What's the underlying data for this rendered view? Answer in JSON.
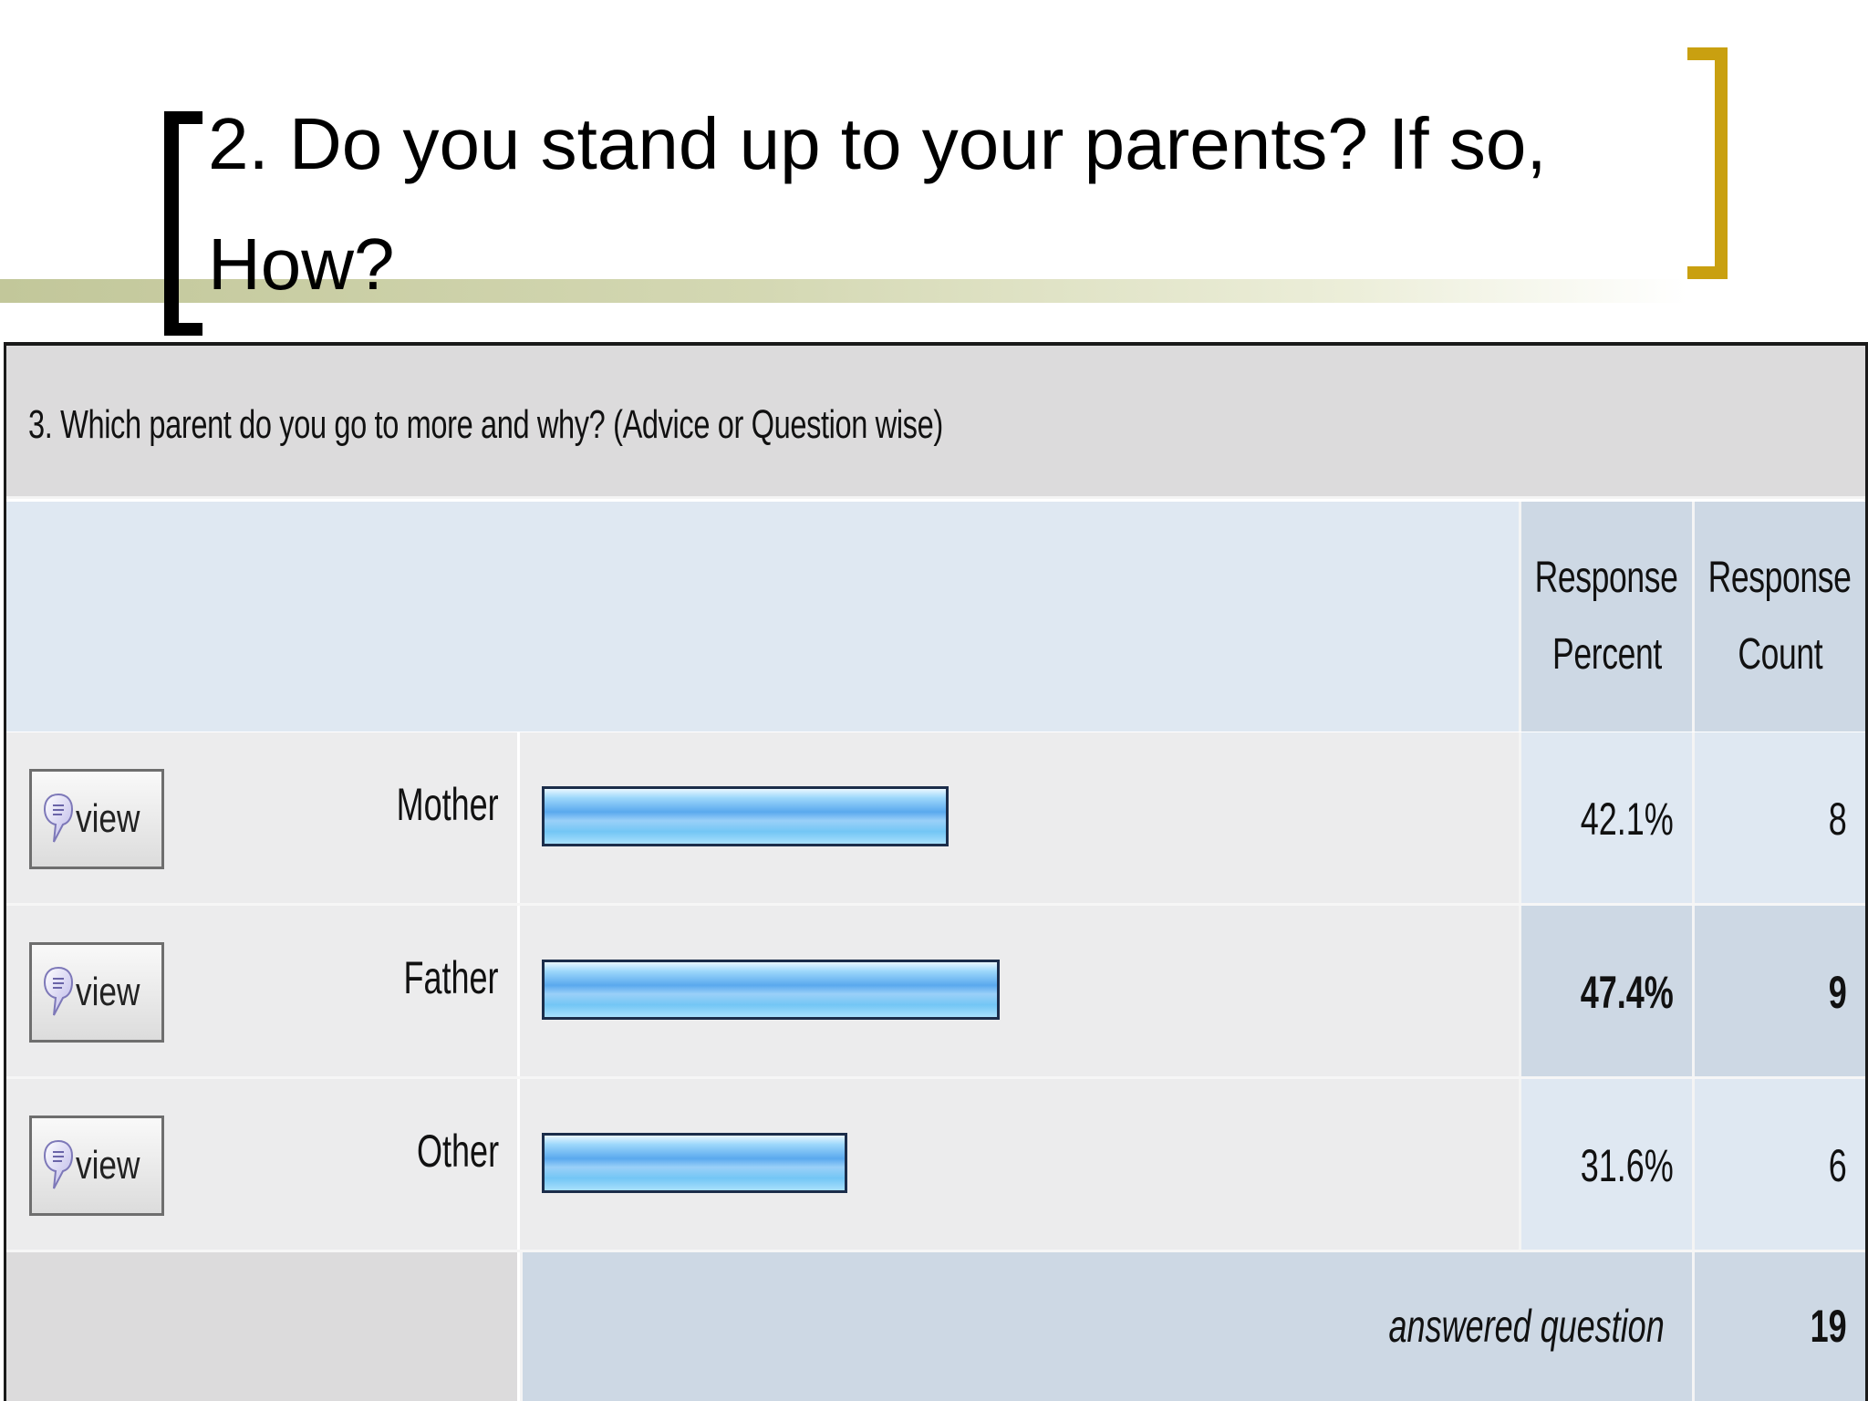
{
  "slide": {
    "title": "2. Do you stand up to your parents? If so, How?"
  },
  "survey": {
    "question": "3. Which parent do you go to more and why? (Advice or Question wise)",
    "header": {
      "percent_line1": "Response",
      "percent_line2": "Percent",
      "count_line1": "Response",
      "count_line2": "Count"
    },
    "view_label": "view",
    "rows": [
      {
        "label": "Mother",
        "percent": "42.1%",
        "count": "8",
        "fraction": 0.421,
        "highlight": false
      },
      {
        "label": "Father",
        "percent": "47.4%",
        "count": "9",
        "fraction": 0.474,
        "highlight": true
      },
      {
        "label": "Other",
        "percent": "31.6%",
        "count": "6",
        "fraction": 0.316,
        "highlight": false
      }
    ],
    "footer": {
      "answered_label": "answered question",
      "answered_count": "19"
    }
  },
  "colors": {
    "left_bracket": "#000000",
    "right_bracket": "#c9a010",
    "bar_border": "#1b2d4a",
    "bar_fill": "#5aa9ee"
  },
  "icons": {
    "view": "speech-bubble-icon"
  }
}
